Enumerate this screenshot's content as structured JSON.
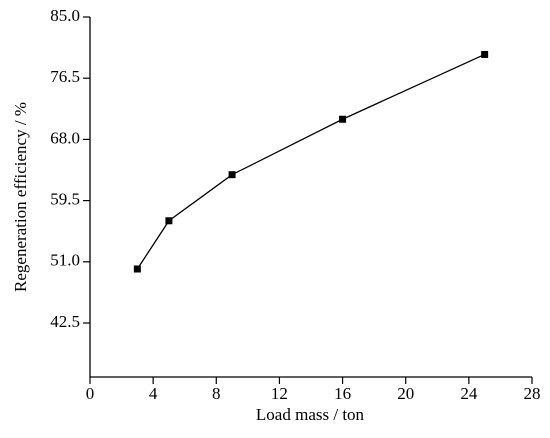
{
  "chart_data": {
    "type": "line",
    "x_label": "Load mass  / ton",
    "y_label": "Regeneration efficiency / %",
    "x": [
      3,
      5,
      9,
      16,
      25
    ],
    "series": [
      {
        "color": "#000000",
        "values": [
          50.0,
          56.7,
          63.1,
          70.8,
          79.8
        ]
      }
    ],
    "xlim": [
      0,
      28
    ],
    "xticks": [
      0,
      4,
      8,
      12,
      16,
      20,
      24,
      28
    ],
    "ylim": [
      35,
      85
    ],
    "yticks": [
      42.5,
      {
        "value": 51,
        "label": "51.0"
      },
      59.5,
      {
        "value": 68,
        "label": "68.0"
      },
      76.5,
      {
        "value": 85,
        "label": "85.0"
      }
    ]
  }
}
